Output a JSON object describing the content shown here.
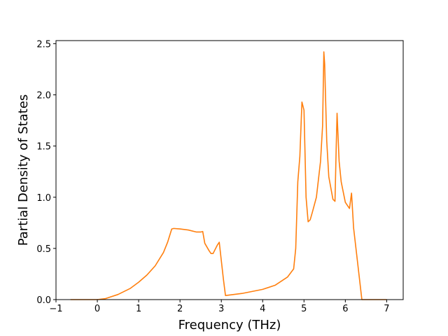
{
  "chart_data": {
    "type": "line",
    "title": "",
    "xlabel": "Frequency (THz)",
    "ylabel": "Partial Density of States",
    "xlim": [
      -1,
      7.4
    ],
    "ylim": [
      0,
      2.53
    ],
    "xticks": [
      -1,
      0,
      1,
      2,
      3,
      4,
      5,
      6,
      7
    ],
    "xtick_labels": [
      "−1",
      "0",
      "1",
      "2",
      "3",
      "4",
      "5",
      "6",
      "7"
    ],
    "yticks": [
      0,
      0.5,
      1,
      1.5,
      2,
      2.5
    ],
    "ytick_labels": [
      "0.0",
      "0.5",
      "1.0",
      "1.5",
      "2.0",
      "2.5"
    ],
    "grid": false,
    "legend": "none",
    "series": [
      {
        "color": "#ff7f0e",
        "x": [
          -0.65,
          -0.3,
          0.0,
          0.2,
          0.5,
          0.8,
          1.0,
          1.2,
          1.4,
          1.6,
          1.7,
          1.8,
          1.85,
          2.0,
          2.2,
          2.4,
          2.5,
          2.55,
          2.6,
          2.7,
          2.75,
          2.8,
          2.9,
          2.95,
          3.0,
          3.05,
          3.1,
          3.5,
          4.0,
          4.3,
          4.6,
          4.75,
          4.8,
          4.85,
          4.9,
          4.95,
          5.0,
          5.05,
          5.1,
          5.15,
          5.2,
          5.3,
          5.4,
          5.45,
          5.48,
          5.5,
          5.55,
          5.6,
          5.7,
          5.75,
          5.78,
          5.8,
          5.85,
          5.9,
          6.0,
          6.1,
          6.15,
          6.2,
          6.3,
          6.4,
          6.5,
          7.0
        ],
        "y": [
          0.0,
          0.0,
          0.0,
          0.01,
          0.05,
          0.11,
          0.17,
          0.24,
          0.33,
          0.46,
          0.56,
          0.69,
          0.695,
          0.69,
          0.68,
          0.66,
          0.66,
          0.665,
          0.55,
          0.48,
          0.45,
          0.45,
          0.53,
          0.56,
          0.38,
          0.2,
          0.04,
          0.06,
          0.1,
          0.14,
          0.22,
          0.3,
          0.5,
          1.15,
          1.4,
          1.93,
          1.85,
          1.0,
          0.76,
          0.78,
          0.85,
          1.0,
          1.35,
          1.7,
          2.42,
          2.3,
          1.55,
          1.2,
          0.98,
          0.96,
          1.5,
          1.82,
          1.35,
          1.15,
          0.95,
          0.89,
          1.04,
          0.7,
          0.35,
          0.0,
          0.0,
          0.0
        ]
      }
    ]
  }
}
